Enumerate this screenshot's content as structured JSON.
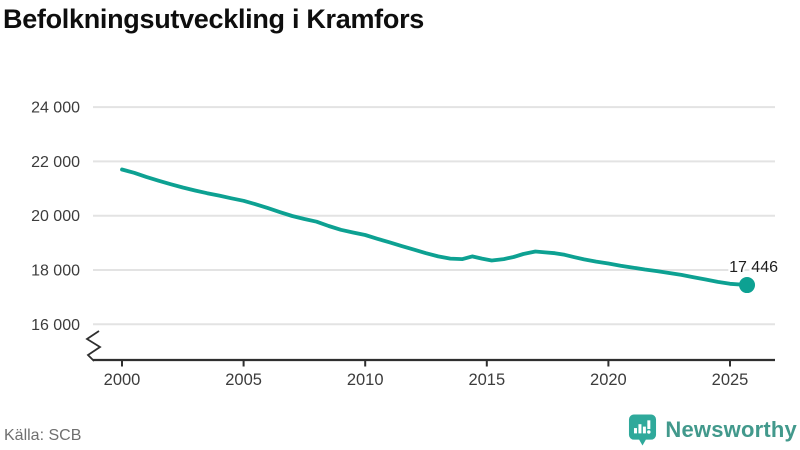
{
  "title": "Befolkningsutveckling i Kramfors",
  "source": "Källa: SCB",
  "brand": {
    "name": "Newsworthy",
    "text_color": "#42998c",
    "icon_color": "#2fa99b",
    "icon": "bar-chart-speech-bubble-icon"
  },
  "colors": {
    "line": "#0da192",
    "grid": "#e3e3e3",
    "axis": "#2f2f2f",
    "tick_label": "#3c3c3c",
    "end_label": "#1f1f1f"
  },
  "chart_data": {
    "type": "line",
    "title": "Befolkningsutveckling i Kramfors",
    "xlabel": "",
    "ylabel": "",
    "grid": true,
    "legend": false,
    "axis_break": true,
    "xlim": [
      1998.8,
      2026.9
    ],
    "ylim": [
      16000,
      24000
    ],
    "x_ticks": [
      {
        "value": 2000,
        "label": "2000"
      },
      {
        "value": 2005,
        "label": "2005"
      },
      {
        "value": 2010,
        "label": "2010"
      },
      {
        "value": 2015,
        "label": "2015"
      },
      {
        "value": 2020,
        "label": "2020"
      },
      {
        "value": 2025,
        "label": "2025"
      }
    ],
    "y_ticks": [
      {
        "value": 24000,
        "label": "24 000"
      },
      {
        "value": 22000,
        "label": "22 000"
      },
      {
        "value": 20000,
        "label": "20 000"
      },
      {
        "value": 18000,
        "label": "18 000"
      },
      {
        "value": 16000,
        "label": "16 000"
      }
    ],
    "end_label": "17 446",
    "end_value": 17446,
    "x": [
      2000,
      2000.5,
      2001,
      2001.5,
      2002,
      2002.5,
      2003,
      2003.5,
      2004,
      2004.5,
      2005,
      2005.5,
      2006,
      2006.5,
      2007,
      2007.5,
      2008,
      2008.5,
      2009,
      2009.5,
      2010,
      2010.5,
      2011,
      2011.5,
      2012,
      2012.5,
      2013,
      2013.5,
      2014,
      2014.4,
      2014.8,
      2015.2,
      2015.7,
      2016.1,
      2016.5,
      2017,
      2017.4,
      2017.8,
      2018.2,
      2018.6,
      2019,
      2019.5,
      2020,
      2020.5,
      2021,
      2021.5,
      2022,
      2022.5,
      2023,
      2023.5,
      2024,
      2024.5,
      2025,
      2025.7
    ],
    "values": [
      21700,
      21580,
      21430,
      21290,
      21160,
      21040,
      20930,
      20830,
      20740,
      20640,
      20550,
      20420,
      20280,
      20130,
      19990,
      19880,
      19780,
      19620,
      19480,
      19380,
      19290,
      19150,
      19020,
      18880,
      18750,
      18620,
      18500,
      18420,
      18400,
      18500,
      18420,
      18350,
      18400,
      18480,
      18590,
      18680,
      18650,
      18620,
      18560,
      18470,
      18390,
      18310,
      18240,
      18160,
      18090,
      18020,
      17960,
      17890,
      17820,
      17730,
      17650,
      17560,
      17490,
      17446
    ]
  }
}
